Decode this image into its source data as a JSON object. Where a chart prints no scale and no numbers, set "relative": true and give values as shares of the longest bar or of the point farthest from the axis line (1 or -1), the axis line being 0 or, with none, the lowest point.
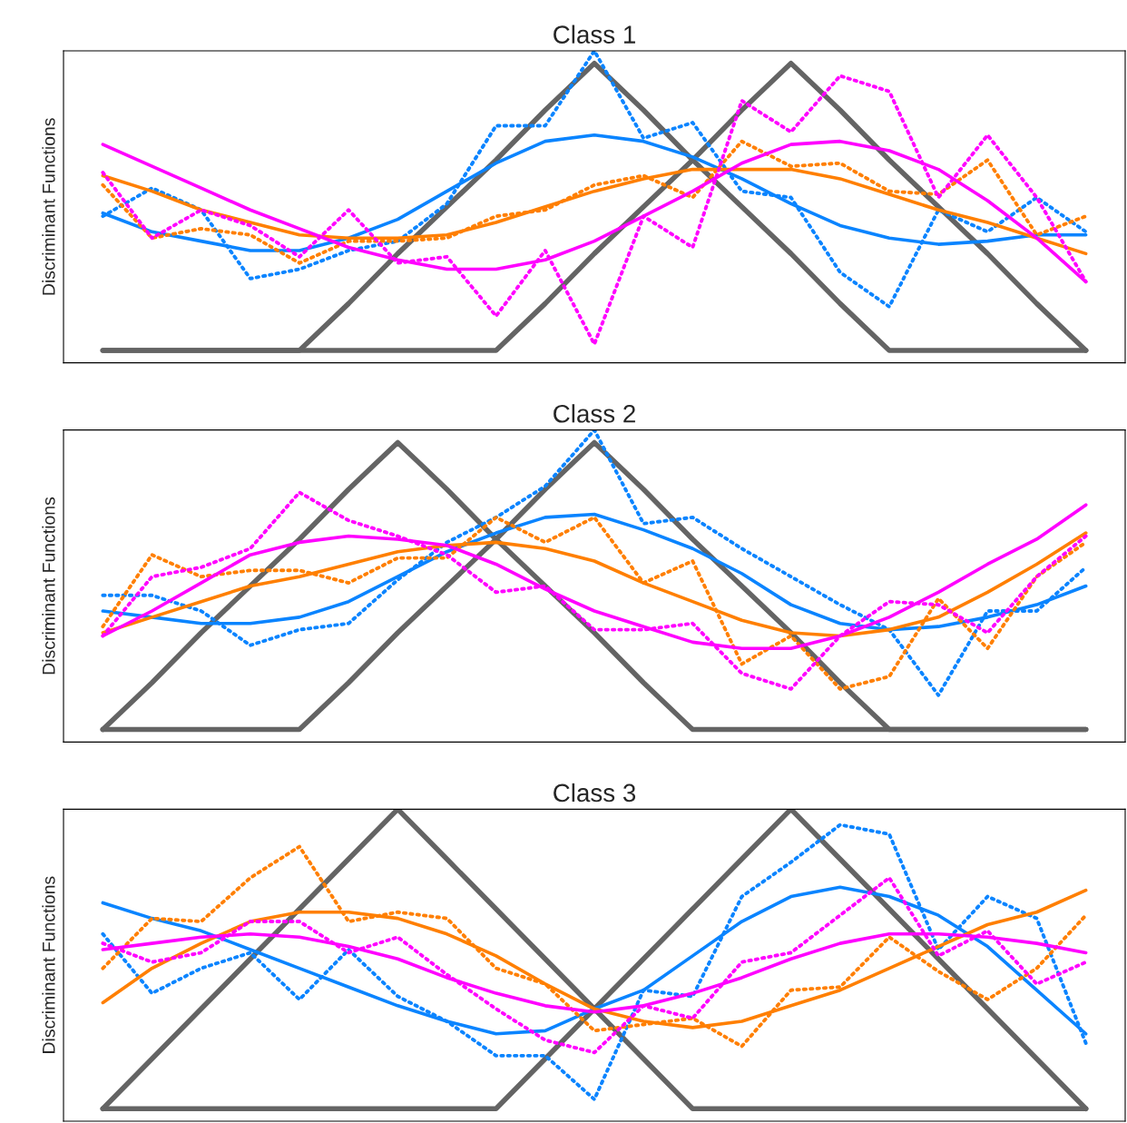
{
  "chart_data": [
    {
      "type": "line",
      "title": "Class 1",
      "ylabel": "Discriminant Functions",
      "relative": true,
      "grid": false,
      "marker": "none",
      "categories": [
        null,
        null,
        null,
        null,
        null,
        null,
        null,
        null,
        null,
        null,
        null,
        null,
        null,
        null,
        null,
        null,
        null,
        null,
        null,
        null,
        null
      ],
      "series": [
        {
          "color": "#646464",
          "line_style": "solid",
          "values": [
            0.04,
            0.04,
            0.04,
            0.04,
            0.04,
            0.19,
            0.35,
            0.5,
            0.65,
            0.81,
            0.96,
            0.81,
            0.65,
            0.5,
            0.35,
            0.19,
            0.04,
            0.04,
            0.04,
            0.04,
            0.04
          ]
        },
        {
          "color": "#646464",
          "line_style": "solid",
          "values": [
            0.04,
            0.04,
            0.04,
            0.04,
            0.04,
            0.04,
            0.04,
            0.04,
            0.04,
            0.19,
            0.35,
            0.5,
            0.65,
            0.81,
            0.96,
            0.81,
            0.65,
            0.5,
            0.35,
            0.19,
            0.04
          ]
        },
        {
          "color": "#0a84ff",
          "line_style": "dotted",
          "values": [
            0.47,
            0.56,
            0.49,
            0.27,
            0.3,
            0.36,
            0.39,
            0.51,
            0.76,
            0.76,
            1.0,
            0.72,
            0.77,
            0.55,
            0.53,
            0.29,
            0.18,
            0.49,
            0.42,
            0.53,
            0.42
          ]
        },
        {
          "color": "#0a84ff",
          "line_style": "solid",
          "values": [
            0.48,
            0.42,
            0.39,
            0.36,
            0.36,
            0.4,
            0.46,
            0.55,
            0.64,
            0.71,
            0.73,
            0.71,
            0.66,
            0.59,
            0.51,
            0.44,
            0.4,
            0.38,
            0.39,
            0.41,
            0.41
          ]
        },
        {
          "color": "#ff7f00",
          "line_style": "dotted",
          "values": [
            0.57,
            0.4,
            0.43,
            0.41,
            0.32,
            0.39,
            0.39,
            0.4,
            0.47,
            0.49,
            0.57,
            0.6,
            0.53,
            0.71,
            0.63,
            0.64,
            0.55,
            0.54,
            0.65,
            0.41,
            0.47
          ]
        },
        {
          "color": "#ff7f00",
          "line_style": "solid",
          "values": [
            0.6,
            0.55,
            0.49,
            0.45,
            0.41,
            0.4,
            0.4,
            0.41,
            0.45,
            0.5,
            0.55,
            0.59,
            0.62,
            0.62,
            0.62,
            0.59,
            0.54,
            0.49,
            0.45,
            0.4,
            0.35
          ]
        },
        {
          "color": "#ff00ff",
          "line_style": "dotted",
          "values": [
            0.61,
            0.4,
            0.49,
            0.44,
            0.34,
            0.49,
            0.32,
            0.34,
            0.15,
            0.36,
            0.06,
            0.47,
            0.37,
            0.84,
            0.74,
            0.92,
            0.87,
            0.53,
            0.73,
            0.53,
            0.26
          ]
        },
        {
          "color": "#ff00ff",
          "line_style": "solid",
          "values": [
            0.7,
            0.63,
            0.56,
            0.49,
            0.43,
            0.37,
            0.33,
            0.3,
            0.3,
            0.33,
            0.39,
            0.47,
            0.55,
            0.64,
            0.7,
            0.71,
            0.68,
            0.62,
            0.52,
            0.4,
            0.26
          ]
        }
      ]
    },
    {
      "type": "line",
      "title": "Class 2",
      "ylabel": "Discriminant Functions",
      "relative": true,
      "grid": false,
      "marker": "none",
      "categories": [
        null,
        null,
        null,
        null,
        null,
        null,
        null,
        null,
        null,
        null,
        null,
        null,
        null,
        null,
        null,
        null,
        null,
        null,
        null,
        null,
        null
      ],
      "series": [
        {
          "color": "#646464",
          "line_style": "solid",
          "values": [
            0.04,
            0.19,
            0.35,
            0.5,
            0.65,
            0.81,
            0.96,
            0.81,
            0.65,
            0.5,
            0.35,
            0.19,
            0.04,
            0.04,
            0.04,
            0.04,
            0.04,
            0.04,
            0.04,
            0.04,
            0.04
          ]
        },
        {
          "color": "#646464",
          "line_style": "solid",
          "values": [
            0.04,
            0.04,
            0.04,
            0.04,
            0.04,
            0.19,
            0.35,
            0.5,
            0.65,
            0.81,
            0.96,
            0.81,
            0.65,
            0.5,
            0.35,
            0.19,
            0.04,
            0.04,
            0.04,
            0.04,
            0.04
          ]
        },
        {
          "color": "#0a84ff",
          "line_style": "dotted",
          "values": [
            0.47,
            0.47,
            0.42,
            0.31,
            0.36,
            0.38,
            0.52,
            0.64,
            0.72,
            0.82,
            1.0,
            0.7,
            0.72,
            0.62,
            0.53,
            0.44,
            0.36,
            0.15,
            0.42,
            0.42,
            0.56
          ]
        },
        {
          "color": "#0a84ff",
          "line_style": "solid",
          "values": [
            0.42,
            0.4,
            0.38,
            0.38,
            0.4,
            0.45,
            0.53,
            0.61,
            0.67,
            0.72,
            0.73,
            0.68,
            0.62,
            0.54,
            0.44,
            0.38,
            0.36,
            0.37,
            0.4,
            0.44,
            0.5
          ]
        },
        {
          "color": "#ff7f00",
          "line_style": "dotted",
          "values": [
            0.37,
            0.6,
            0.53,
            0.55,
            0.55,
            0.51,
            0.59,
            0.59,
            0.72,
            0.64,
            0.72,
            0.51,
            0.58,
            0.25,
            0.34,
            0.17,
            0.21,
            0.46,
            0.3,
            0.53,
            0.64
          ]
        },
        {
          "color": "#ff7f00",
          "line_style": "solid",
          "values": [
            0.35,
            0.4,
            0.45,
            0.5,
            0.53,
            0.57,
            0.61,
            0.63,
            0.64,
            0.62,
            0.58,
            0.51,
            0.45,
            0.39,
            0.35,
            0.34,
            0.36,
            0.4,
            0.48,
            0.57,
            0.67
          ]
        },
        {
          "color": "#ff00ff",
          "line_style": "dotted",
          "values": [
            0.34,
            0.53,
            0.56,
            0.62,
            0.8,
            0.71,
            0.66,
            0.6,
            0.48,
            0.5,
            0.36,
            0.36,
            0.38,
            0.22,
            0.17,
            0.34,
            0.45,
            0.44,
            0.35,
            0.53,
            0.66
          ]
        },
        {
          "color": "#ff00ff",
          "line_style": "solid",
          "values": [
            0.34,
            0.42,
            0.51,
            0.6,
            0.64,
            0.66,
            0.65,
            0.63,
            0.57,
            0.49,
            0.42,
            0.37,
            0.32,
            0.3,
            0.3,
            0.34,
            0.4,
            0.48,
            0.57,
            0.65,
            0.76
          ]
        }
      ]
    },
    {
      "type": "line",
      "title": "Class 3",
      "ylabel": "Discriminant Functions",
      "relative": true,
      "grid": false,
      "marker": "none",
      "categories": [
        null,
        null,
        null,
        null,
        null,
        null,
        null,
        null,
        null,
        null,
        null,
        null,
        null,
        null,
        null,
        null,
        null,
        null,
        null,
        null,
        null
      ],
      "series": [
        {
          "color": "#646464",
          "line_style": "solid",
          "values": [
            0.04,
            0.2,
            0.36,
            0.52,
            0.68,
            0.84,
            1.0,
            0.84,
            0.68,
            0.52,
            0.36,
            0.2,
            0.04,
            0.04,
            0.04,
            0.04,
            0.04,
            0.04,
            0.04,
            0.04,
            0.04
          ]
        },
        {
          "color": "#646464",
          "line_style": "solid",
          "values": [
            0.04,
            0.04,
            0.04,
            0.04,
            0.04,
            0.04,
            0.04,
            0.04,
            0.04,
            0.2,
            0.36,
            0.52,
            0.68,
            0.84,
            1.0,
            0.84,
            0.68,
            0.52,
            0.36,
            0.2,
            0.04
          ]
        },
        {
          "color": "#0a84ff",
          "line_style": "dotted",
          "values": [
            0.6,
            0.41,
            0.49,
            0.54,
            0.39,
            0.55,
            0.4,
            0.32,
            0.21,
            0.21,
            0.07,
            0.42,
            0.4,
            0.72,
            0.83,
            0.95,
            0.92,
            0.55,
            0.72,
            0.65,
            0.25
          ]
        },
        {
          "color": "#0a84ff",
          "line_style": "solid",
          "values": [
            0.7,
            0.65,
            0.61,
            0.55,
            0.49,
            0.43,
            0.37,
            0.32,
            0.28,
            0.29,
            0.36,
            0.42,
            0.53,
            0.64,
            0.72,
            0.75,
            0.72,
            0.66,
            0.56,
            0.42,
            0.28
          ]
        },
        {
          "color": "#ff7f00",
          "line_style": "dotted",
          "values": [
            0.49,
            0.65,
            0.64,
            0.78,
            0.88,
            0.64,
            0.67,
            0.65,
            0.49,
            0.44,
            0.29,
            0.31,
            0.33,
            0.24,
            0.42,
            0.43,
            0.59,
            0.48,
            0.39,
            0.49,
            0.66
          ]
        },
        {
          "color": "#ff7f00",
          "line_style": "solid",
          "values": [
            0.38,
            0.49,
            0.57,
            0.64,
            0.67,
            0.67,
            0.65,
            0.6,
            0.53,
            0.44,
            0.36,
            0.32,
            0.3,
            0.32,
            0.37,
            0.42,
            0.49,
            0.56,
            0.63,
            0.67,
            0.74
          ]
        },
        {
          "color": "#ff00ff",
          "line_style": "dotted",
          "values": [
            0.57,
            0.51,
            0.54,
            0.64,
            0.64,
            0.54,
            0.59,
            0.47,
            0.36,
            0.26,
            0.22,
            0.37,
            0.33,
            0.51,
            0.54,
            0.66,
            0.78,
            0.53,
            0.61,
            0.44,
            0.51
          ]
        },
        {
          "color": "#ff00ff",
          "line_style": "solid",
          "values": [
            0.55,
            0.57,
            0.59,
            0.6,
            0.59,
            0.56,
            0.52,
            0.46,
            0.41,
            0.37,
            0.35,
            0.37,
            0.41,
            0.46,
            0.52,
            0.57,
            0.6,
            0.6,
            0.59,
            0.57,
            0.54
          ]
        }
      ]
    }
  ]
}
